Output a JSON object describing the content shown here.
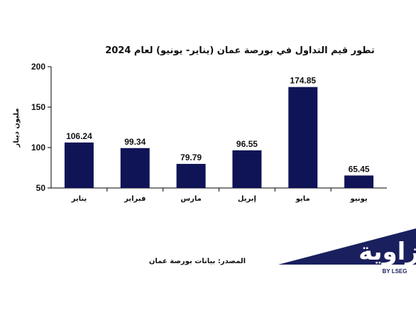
{
  "chart_data": {
    "type": "bar",
    "title": "تطور قيم التداول في بورصة عمان (يناير- يونيو) لعام 2024",
    "ylabel": "مليون دينار",
    "xlabel": "",
    "categories": [
      "يناير",
      "فبراير",
      "مارس",
      "إبريل",
      "مايو",
      "يونيو"
    ],
    "values": [
      106.24,
      99.34,
      79.79,
      96.55,
      174.85,
      65.45
    ],
    "data_labels": [
      "106.24",
      "99.34",
      "79.79",
      "96.55",
      "174.85",
      "65.45"
    ],
    "ylim": [
      50,
      200
    ],
    "yticks": [
      50,
      100,
      150,
      200
    ],
    "grid": false,
    "bar_color": "#0f1456"
  },
  "source": "المصدر: بيانات بورصة عمان",
  "brand": {
    "name": "زاوية",
    "sub": "BY LSEG",
    "color": "#1a1f5e"
  }
}
